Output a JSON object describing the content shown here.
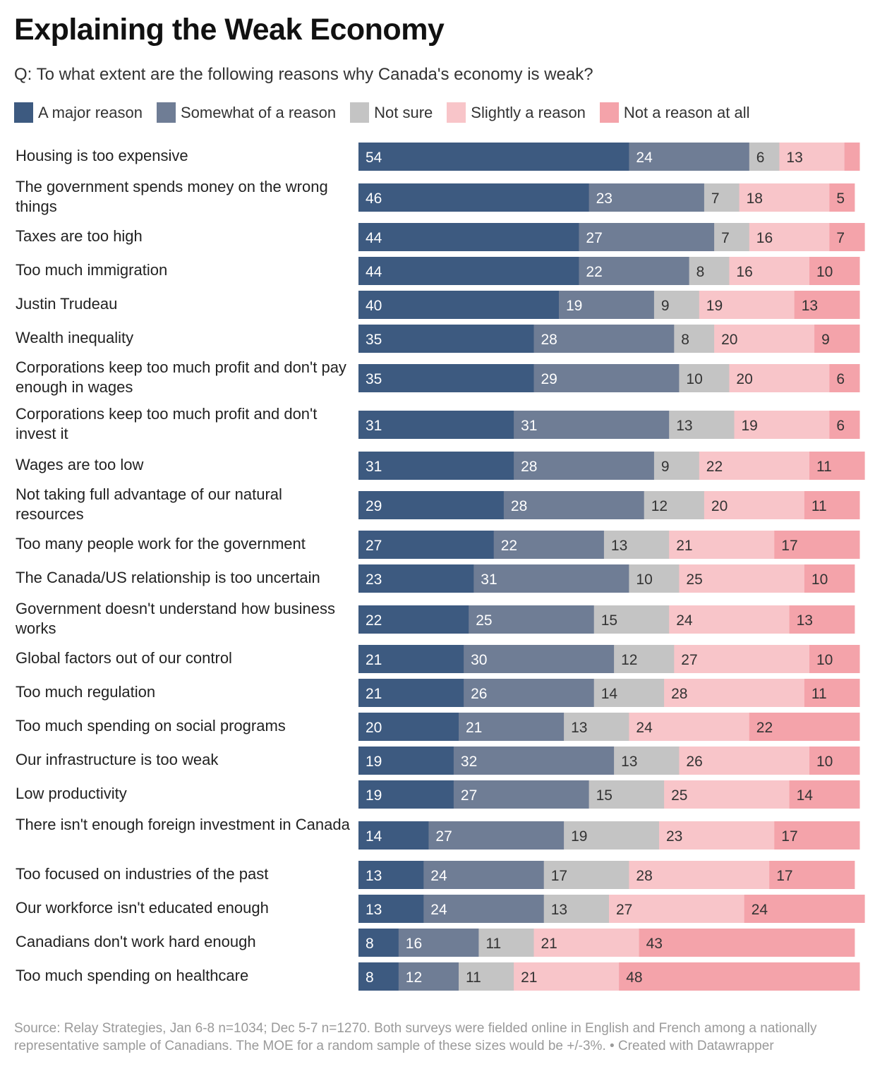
{
  "title": "Explaining the Weak Economy",
  "subtitle": "Q: To what extent are the following reasons why Canada's economy is weak?",
  "legend": [
    {
      "label": "A major reason",
      "color": "#3d5a80"
    },
    {
      "label": "Somewhat of a reason",
      "color": "#6f7d95"
    },
    {
      "label": "Not sure",
      "color": "#c4c4c4"
    },
    {
      "label": "Slightly a reason",
      "color": "#f8c5c9"
    },
    {
      "label": "Not a reason at all",
      "color": "#f4a3aa"
    }
  ],
  "source": "Source: Relay Strategies, Jan 6-8 n=1034; Dec 5-7 n=1270. Both surveys were fielded online in English and French among a nationally representative sample of Canadians. The MOE for a random sample of these sizes would be +/-3%.  • Created with Datawrapper",
  "chart_data": {
    "type": "bar",
    "orientation": "horizontal",
    "stacked": true,
    "categories": [
      "Housing is too expensive",
      "The government spends money on the wrong things",
      "Taxes are too high",
      "Too much immigration",
      "Justin Trudeau",
      "Wealth inequality",
      "Corporations keep too much profit and don't pay enough in wages",
      "Corporations keep too much profit and don't invest it",
      "Wages are too low",
      "Not taking full advantage of our natural resources",
      "Too many people work for the government",
      "The Canada/US relationship is too uncertain",
      "Government doesn't understand how business works",
      "Global factors out of our control",
      "Too much regulation",
      "Too much spending on social programs",
      "Our infrastructure is too weak",
      "Low productivity",
      "There isn't enough foreign investment in Canada",
      "Too focused on industries of the past",
      "Our workforce isn't educated enough",
      "Canadians don't work hard enough",
      "Too much spending on healthcare"
    ],
    "series": [
      {
        "name": "A major reason",
        "values": [
          54,
          46,
          44,
          44,
          40,
          35,
          35,
          31,
          31,
          29,
          27,
          23,
          22,
          21,
          21,
          20,
          19,
          19,
          14,
          13,
          13,
          8,
          8
        ]
      },
      {
        "name": "Somewhat of a reason",
        "values": [
          24,
          23,
          27,
          22,
          19,
          28,
          29,
          31,
          28,
          28,
          22,
          31,
          25,
          30,
          26,
          21,
          32,
          27,
          27,
          24,
          24,
          16,
          12
        ]
      },
      {
        "name": "Not sure",
        "values": [
          6,
          7,
          7,
          8,
          9,
          8,
          10,
          13,
          9,
          12,
          13,
          10,
          15,
          12,
          14,
          13,
          13,
          15,
          19,
          17,
          13,
          11,
          11
        ]
      },
      {
        "name": "Slightly a reason",
        "values": [
          13,
          18,
          16,
          16,
          19,
          20,
          20,
          19,
          22,
          20,
          21,
          25,
          24,
          27,
          28,
          24,
          26,
          25,
          23,
          28,
          27,
          21,
          21
        ]
      },
      {
        "name": "Not a reason at all",
        "values": [
          3,
          5,
          7,
          10,
          13,
          9,
          6,
          6,
          11,
          11,
          17,
          10,
          13,
          10,
          11,
          22,
          10,
          14,
          17,
          17,
          24,
          43,
          48
        ]
      }
    ],
    "value_labels": [
      [
        "54",
        "24",
        "6",
        "13",
        ""
      ],
      [
        "46",
        "23",
        "7",
        "18",
        "5"
      ],
      [
        "44",
        "27",
        "7",
        "16",
        "7"
      ],
      [
        "44",
        "22",
        "8",
        "16",
        "10"
      ],
      [
        "40",
        "19",
        "9",
        "19",
        "13"
      ],
      [
        "35",
        "28",
        "8",
        "20",
        "9"
      ],
      [
        "35",
        "29",
        "10",
        "20",
        "6"
      ],
      [
        "31",
        "31",
        "13",
        "19",
        "6"
      ],
      [
        "31",
        "28",
        "9",
        "22",
        "11"
      ],
      [
        "29",
        "28",
        "12",
        "20",
        "11"
      ],
      [
        "27",
        "22",
        "13",
        "21",
        "17"
      ],
      [
        "23",
        "31",
        "10",
        "25",
        "10"
      ],
      [
        "22",
        "25",
        "15",
        "24",
        "13"
      ],
      [
        "21",
        "30",
        "12",
        "27",
        "10"
      ],
      [
        "21",
        "26",
        "14",
        "28",
        "11"
      ],
      [
        "20",
        "21",
        "13",
        "24",
        "22"
      ],
      [
        "19",
        "32",
        "13",
        "26",
        "10"
      ],
      [
        "19",
        "27",
        "15",
        "25",
        "14"
      ],
      [
        "14",
        "27",
        "19",
        "23",
        "17"
      ],
      [
        "13",
        "24",
        "17",
        "28",
        "17"
      ],
      [
        "13",
        "24",
        "13",
        "27",
        "24"
      ],
      [
        "8",
        "16",
        "11",
        "21",
        "43"
      ],
      [
        "8",
        "12",
        "11",
        "21",
        "48"
      ]
    ],
    "label_colors": [
      "#ffffff",
      "#ffffff",
      "#333333",
      "#333333",
      "#333333"
    ],
    "xlim": [
      0,
      100
    ],
    "grid": false,
    "legend_position": "top"
  }
}
